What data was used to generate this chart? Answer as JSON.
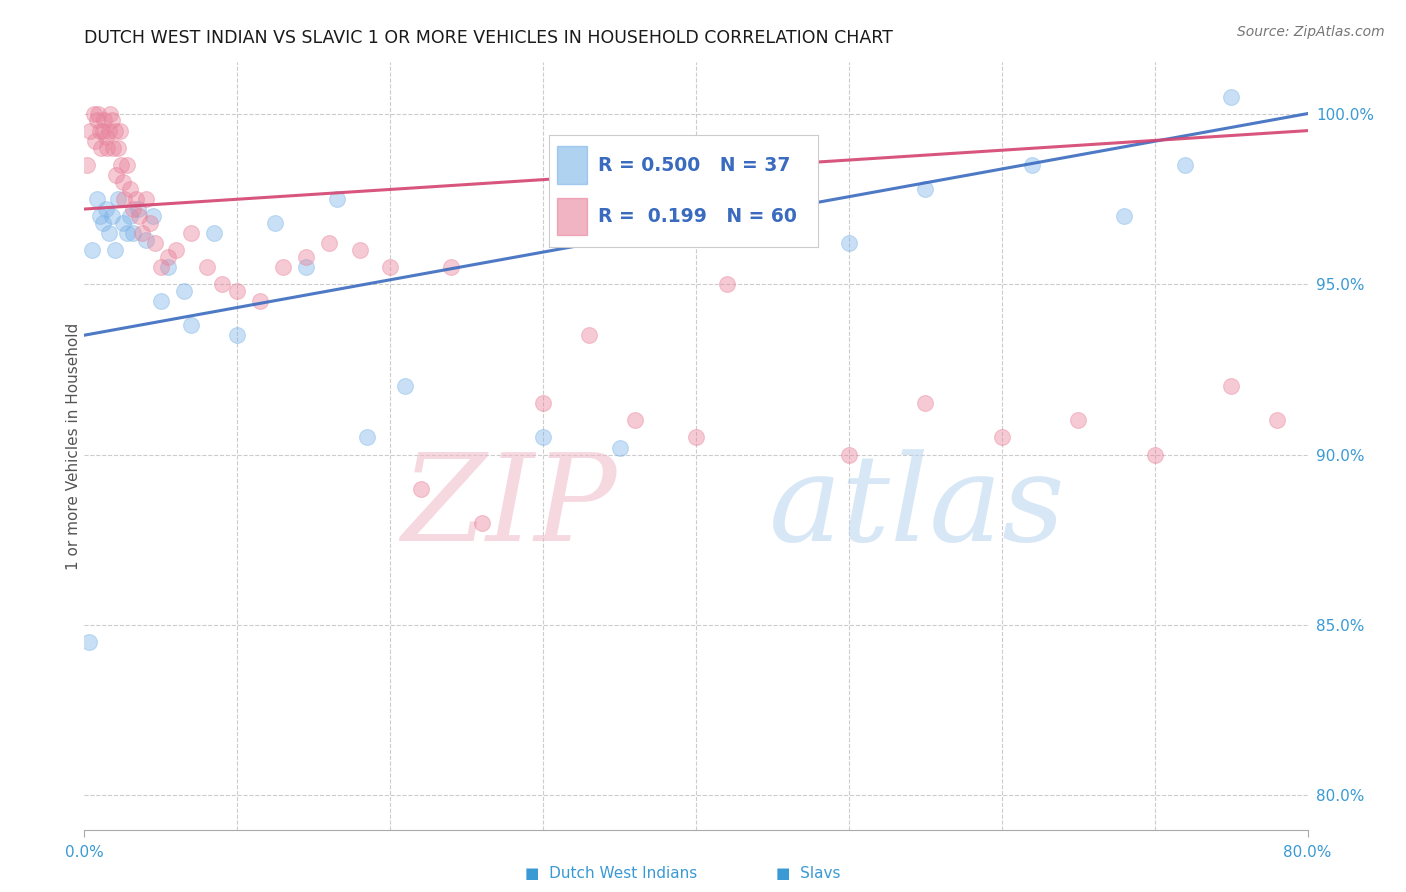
{
  "title": "DUTCH WEST INDIAN VS SLAVIC 1 OR MORE VEHICLES IN HOUSEHOLD CORRELATION CHART",
  "source": "Source: ZipAtlas.com",
  "ylabel": "1 or more Vehicles in Household",
  "ytick_labels": [
    "80.0%",
    "85.0%",
    "90.0%",
    "95.0%",
    "100.0%"
  ],
  "ytick_values": [
    80,
    85,
    90,
    95,
    100
  ],
  "xlim": [
    0,
    80
  ],
  "ylim": [
    79,
    101.5
  ],
  "blue_color": "#7cb4e8",
  "pink_color": "#e8829a",
  "line_blue_color": "#3a6bbf",
  "line_pink_color": "#d44470",
  "legend_blue_R": "R = 0.500",
  "legend_blue_N": "N = 37",
  "legend_pink_R": "R =  0.199",
  "legend_pink_N": "N = 60",
  "blue_x": [
    0.3,
    0.5,
    0.8,
    1.0,
    1.2,
    1.4,
    1.6,
    1.8,
    2.0,
    2.2,
    2.5,
    2.8,
    3.0,
    3.2,
    3.5,
    4.0,
    4.5,
    5.0,
    5.5,
    6.5,
    7.0,
    8.5,
    10.0,
    12.5,
    14.5,
    16.5,
    18.5,
    21.0,
    30.0,
    35.0,
    40.0,
    50.0,
    55.0,
    62.0,
    68.0,
    72.0,
    75.0
  ],
  "blue_y": [
    84.5,
    96.0,
    97.5,
    97.0,
    96.8,
    97.2,
    96.5,
    97.0,
    96.0,
    97.5,
    96.8,
    96.5,
    97.0,
    96.5,
    97.2,
    96.3,
    97.0,
    94.5,
    95.5,
    94.8,
    93.8,
    96.5,
    93.5,
    96.8,
    95.5,
    97.5,
    90.5,
    92.0,
    90.5,
    90.2,
    97.5,
    96.2,
    97.8,
    98.5,
    97.0,
    98.5,
    100.5
  ],
  "pink_x": [
    0.2,
    0.4,
    0.6,
    0.7,
    0.8,
    0.9,
    1.0,
    1.1,
    1.2,
    1.3,
    1.4,
    1.5,
    1.6,
    1.7,
    1.8,
    1.9,
    2.0,
    2.1,
    2.2,
    2.3,
    2.4,
    2.5,
    2.6,
    2.8,
    3.0,
    3.2,
    3.4,
    3.6,
    3.8,
    4.0,
    4.3,
    4.6,
    5.0,
    5.5,
    6.0,
    7.0,
    8.0,
    9.0,
    10.0,
    11.5,
    13.0,
    14.5,
    16.0,
    18.0,
    20.0,
    22.0,
    24.0,
    26.0,
    30.0,
    33.0,
    36.0,
    40.0,
    42.0,
    50.0,
    55.0,
    60.0,
    65.0,
    70.0,
    75.0,
    78.0
  ],
  "pink_y": [
    98.5,
    99.5,
    100.0,
    99.2,
    99.8,
    100.0,
    99.5,
    99.0,
    99.5,
    99.8,
    99.3,
    99.0,
    99.5,
    100.0,
    99.8,
    99.0,
    99.5,
    98.2,
    99.0,
    99.5,
    98.5,
    98.0,
    97.5,
    98.5,
    97.8,
    97.2,
    97.5,
    97.0,
    96.5,
    97.5,
    96.8,
    96.2,
    95.5,
    95.8,
    96.0,
    96.5,
    95.5,
    95.0,
    94.8,
    94.5,
    95.5,
    95.8,
    96.2,
    96.0,
    95.5,
    89.0,
    95.5,
    88.0,
    91.5,
    93.5,
    91.0,
    90.5,
    95.0,
    90.0,
    91.5,
    90.5,
    91.0,
    90.0,
    92.0,
    91.0
  ],
  "watermark_zip": "ZIP",
  "watermark_atlas": "atlas",
  "grid_color": "#cccccc",
  "marker_size": 130,
  "marker_alpha": 0.42,
  "line_alpha": 0.9,
  "bg_color": "#ffffff"
}
